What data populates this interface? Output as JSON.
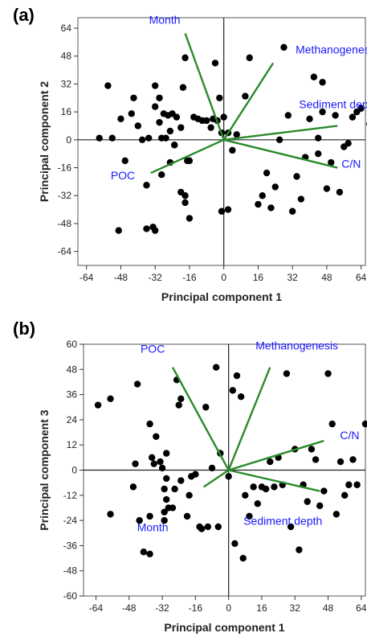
{
  "panels": [
    {
      "id": "a",
      "label": "(a)",
      "chart_data": {
        "type": "scatter",
        "title": "",
        "xlabel": "Principal component 1",
        "ylabel": "Principal component  2",
        "xlim": [
          -68,
          66
        ],
        "ylim": [
          -72,
          70
        ],
        "xticks": [
          -64,
          -48,
          -32,
          -16,
          0,
          16,
          32,
          48,
          64
        ],
        "yticks": [
          64,
          48,
          32,
          16,
          0,
          -16,
          -32,
          -48,
          -64
        ],
        "grid": false,
        "points": [
          [
            -58,
            1
          ],
          [
            -52,
            1
          ],
          [
            -54,
            31
          ],
          [
            -48,
            12
          ],
          [
            -46,
            -12
          ],
          [
            -42,
            24
          ],
          [
            -43,
            15
          ],
          [
            -40,
            8
          ],
          [
            -38,
            0
          ],
          [
            -36,
            -26
          ],
          [
            -35,
            1
          ],
          [
            -32,
            31
          ],
          [
            -32,
            19
          ],
          [
            -30,
            24
          ],
          [
            -30,
            10
          ],
          [
            -29,
            -20
          ],
          [
            -28,
            15
          ],
          [
            -27,
            1
          ],
          [
            -26,
            14
          ],
          [
            -25,
            5
          ],
          [
            -24,
            15
          ],
          [
            -23,
            -3
          ],
          [
            -22,
            13
          ],
          [
            -20,
            7
          ],
          [
            -19,
            30
          ],
          [
            -18,
            47
          ],
          [
            -17,
            -12
          ],
          [
            -16,
            -12
          ],
          [
            -14,
            13
          ],
          [
            -12,
            12
          ],
          [
            -10,
            11
          ],
          [
            -8,
            11
          ],
          [
            -6,
            7
          ],
          [
            -5,
            12
          ],
          [
            -3,
            11
          ],
          [
            -2,
            24
          ],
          [
            -1,
            4
          ],
          [
            -25,
            -13
          ],
          [
            -29,
            1
          ],
          [
            -36,
            -51
          ],
          [
            -32,
            -52
          ],
          [
            -33,
            -50
          ],
          [
            -49,
            -52
          ],
          [
            -18,
            -32
          ],
          [
            -18,
            -36
          ],
          [
            -20,
            -30
          ],
          [
            -16,
            -45
          ],
          [
            -4,
            44
          ],
          [
            -1,
            -41
          ],
          [
            2,
            -40
          ],
          [
            0,
            13
          ],
          [
            2,
            4
          ],
          [
            4,
            -6
          ],
          [
            6,
            3
          ],
          [
            10,
            25
          ],
          [
            12,
            47
          ],
          [
            16,
            -37
          ],
          [
            18,
            -32
          ],
          [
            20,
            -19
          ],
          [
            22,
            -39
          ],
          [
            24,
            -27
          ],
          [
            26,
            0
          ],
          [
            28,
            53
          ],
          [
            30,
            14
          ],
          [
            32,
            -41
          ],
          [
            34,
            -21
          ],
          [
            36,
            -34
          ],
          [
            38,
            -10
          ],
          [
            40,
            12
          ],
          [
            42,
            36
          ],
          [
            44,
            1
          ],
          [
            46,
            16
          ],
          [
            48,
            -28
          ],
          [
            46,
            33
          ],
          [
            50,
            -13
          ],
          [
            52,
            14
          ],
          [
            54,
            -30
          ],
          [
            56,
            -4
          ],
          [
            58,
            -2
          ],
          [
            60,
            13
          ],
          [
            62,
            16
          ],
          [
            64,
            18
          ],
          [
            68,
            9
          ],
          [
            44,
            -8
          ],
          [
            -23,
            -3
          ]
        ],
        "vectors": [
          {
            "name": "Month",
            "x": -18,
            "y": 61
          },
          {
            "name": "Methanogenesis",
            "x": 23,
            "y": 44
          },
          {
            "name": "Sediment depth",
            "x": 53,
            "y": 8
          },
          {
            "name": "POC",
            "x": -34,
            "y": -19
          },
          {
            "name": "C/N",
            "x": 53,
            "y": -16
          }
        ]
      }
    },
    {
      "id": "b",
      "label": "(b)",
      "chart_data": {
        "type": "scatter",
        "title": "",
        "xlabel": "Principal component 1",
        "ylabel": "Principal component 3",
        "xlim": [
          -70,
          66
        ],
        "ylim": [
          -60,
          60
        ],
        "xticks": [
          -64,
          -48,
          -32,
          -16,
          0,
          16,
          32,
          48,
          64
        ],
        "yticks": [
          60,
          48,
          36,
          24,
          12,
          0,
          -12,
          -24,
          -36,
          -48,
          -60
        ],
        "grid": false,
        "points": [
          [
            -63,
            31
          ],
          [
            -57,
            34
          ],
          [
            -57,
            -21
          ],
          [
            -46,
            -8
          ],
          [
            -45,
            3
          ],
          [
            -44,
            41
          ],
          [
            -43,
            -24
          ],
          [
            -41,
            -39
          ],
          [
            -38,
            -22
          ],
          [
            -38,
            -40
          ],
          [
            -38,
            22
          ],
          [
            -37,
            6
          ],
          [
            -36,
            3
          ],
          [
            -35,
            16
          ],
          [
            -33,
            4
          ],
          [
            -32,
            1
          ],
          [
            -31,
            -9
          ],
          [
            -31,
            -20
          ],
          [
            -31,
            -24
          ],
          [
            -30,
            8
          ],
          [
            -30,
            -14
          ],
          [
            -30,
            -4
          ],
          [
            -29,
            -18
          ],
          [
            -27,
            -18
          ],
          [
            -26,
            -9
          ],
          [
            -25,
            43
          ],
          [
            -24,
            31
          ],
          [
            -23,
            -5
          ],
          [
            -23,
            34
          ],
          [
            -20,
            -22
          ],
          [
            -18,
            -3
          ],
          [
            -16,
            -2
          ],
          [
            -14,
            -27
          ],
          [
            -13,
            -28
          ],
          [
            -11,
            30
          ],
          [
            -10,
            -27
          ],
          [
            -8,
            1
          ],
          [
            -6,
            49
          ],
          [
            -5,
            -27
          ],
          [
            -4,
            8
          ],
          [
            0,
            -3
          ],
          [
            2,
            38
          ],
          [
            3,
            -35
          ],
          [
            4,
            45
          ],
          [
            6,
            35
          ],
          [
            7,
            -42
          ],
          [
            8,
            -12
          ],
          [
            12,
            -8
          ],
          [
            14,
            -16
          ],
          [
            16,
            -8
          ],
          [
            18,
            -9
          ],
          [
            20,
            4
          ],
          [
            22,
            -8
          ],
          [
            24,
            6
          ],
          [
            26,
            -7
          ],
          [
            28,
            46
          ],
          [
            30,
            -27
          ],
          [
            32,
            10
          ],
          [
            34,
            -38
          ],
          [
            36,
            -7
          ],
          [
            38,
            -15
          ],
          [
            40,
            10
          ],
          [
            42,
            5
          ],
          [
            44,
            -17
          ],
          [
            46,
            -10
          ],
          [
            48,
            46
          ],
          [
            50,
            22
          ],
          [
            52,
            -21
          ],
          [
            54,
            4
          ],
          [
            56,
            -12
          ],
          [
            58,
            -7
          ],
          [
            60,
            5
          ],
          [
            62,
            -7
          ],
          [
            66,
            22
          ],
          [
            -19,
            -12
          ],
          [
            10,
            -22
          ]
        ],
        "vectors": [
          {
            "name": "POC",
            "x": -27,
            "y": 49
          },
          {
            "name": "Methanogenesis",
            "x": 20,
            "y": 49
          },
          {
            "name": "C/N",
            "x": 46,
            "y": 14
          },
          {
            "name": "Sediment depth",
            "x": 44,
            "y": -10
          },
          {
            "name": "Month",
            "x": -12,
            "y": -8
          }
        ]
      }
    }
  ]
}
